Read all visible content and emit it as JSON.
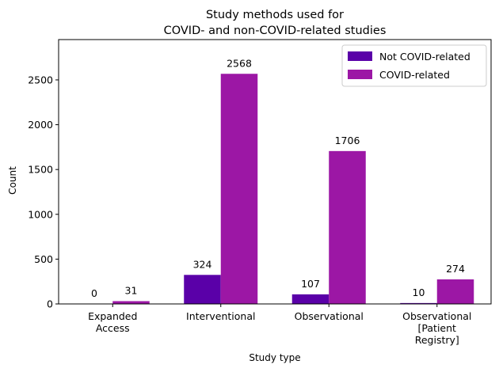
{
  "chart_data": {
    "type": "bar",
    "title_lines": [
      "Study methods used for",
      "COVID- and non-COVID-related studies"
    ],
    "xlabel": "Study type",
    "ylabel": "Count",
    "categories": [
      [
        "Expanded",
        "Access"
      ],
      [
        "Interventional"
      ],
      [
        "Observational"
      ],
      [
        "Observational",
        "[Patient",
        "Registry]"
      ]
    ],
    "series": [
      {
        "name": "Not COVID-related",
        "values": [
          0,
          324,
          107,
          10
        ],
        "color": "#5a00a8"
      },
      {
        "name": "COVID-related",
        "values": [
          31,
          2568,
          1706,
          274
        ],
        "color": "#9c17a5"
      }
    ],
    "ylim": [
      0,
      2950
    ],
    "yticks": [
      0,
      500,
      1000,
      1500,
      2000,
      2500
    ],
    "legend_position": "top-right",
    "grid": false
  }
}
